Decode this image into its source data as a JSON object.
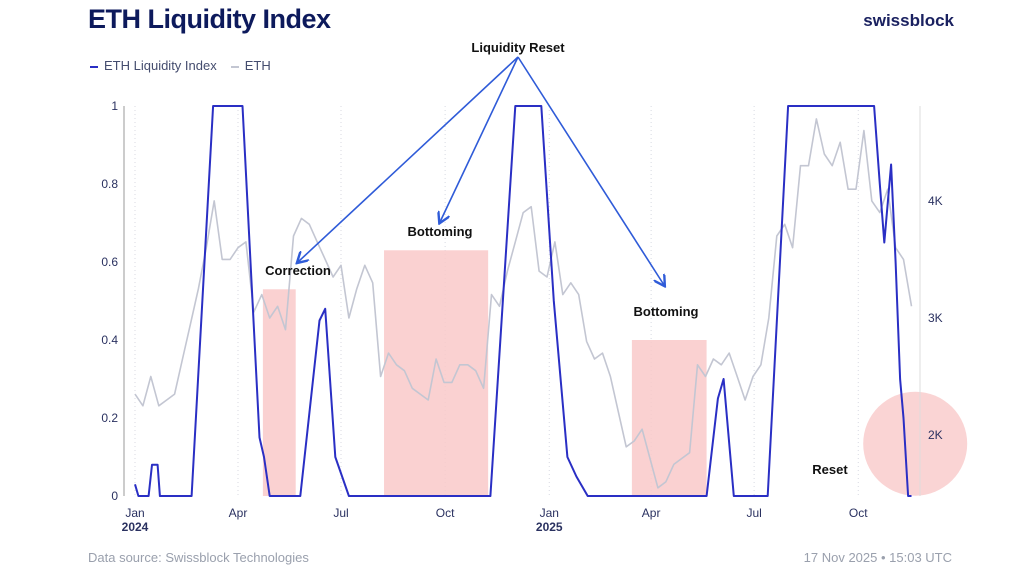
{
  "header": {
    "title": "ETH Liquidity Index",
    "brand": "swissblock"
  },
  "footer": {
    "source": "Data source: Swissblock Technologies",
    "timestamp": "17 Nov 2025 • 15:03 UTC"
  },
  "chart_data": {
    "type": "line",
    "title": "ETH Liquidity Index",
    "legend": {
      "placement": "top-left",
      "entries": [
        "ETH Liquidity Index",
        "ETH"
      ]
    },
    "x_range": [
      "2024-01-01",
      "2025-11-17"
    ],
    "x_ticks": [
      {
        "date": "2024-01-01",
        "label": "Jan",
        "year": "2024"
      },
      {
        "date": "2024-04-01",
        "label": "Apr"
      },
      {
        "date": "2024-07-01",
        "label": "Jul"
      },
      {
        "date": "2024-10-01",
        "label": "Oct"
      },
      {
        "date": "2025-01-01",
        "label": "Jan",
        "year": "2025"
      },
      {
        "date": "2025-04-01",
        "label": "Apr"
      },
      {
        "date": "2025-07-01",
        "label": "Jul"
      },
      {
        "date": "2025-10-01",
        "label": "Oct"
      }
    ],
    "y_left": {
      "range": [
        0,
        1
      ],
      "ticks": [
        "0",
        "0.2",
        "0.4",
        "0.6",
        "0.8",
        "1"
      ]
    },
    "y_right": {
      "range": [
        1480,
        4810
      ],
      "ticks": [
        {
          "v": 2000,
          "label": "2K"
        },
        {
          "v": 3000,
          "label": "3K"
        },
        {
          "v": 4000,
          "label": "4K"
        }
      ]
    },
    "grid": "vertical dotted",
    "colors": {
      "index": "#2a2fc4",
      "eth": "#c3c6d2",
      "shade": "#f9c9c9",
      "arrow": "#2f5bd8"
    },
    "series": [
      {
        "name": "ETH Liquidity Index",
        "axis": "left",
        "points": [
          [
            "2024-01-01",
            0.03
          ],
          [
            "2024-01-04",
            0
          ],
          [
            "2024-01-13",
            0
          ],
          [
            "2024-01-16",
            0.08
          ],
          [
            "2024-01-21",
            0.08
          ],
          [
            "2024-01-23",
            0
          ],
          [
            "2024-02-20",
            0
          ],
          [
            "2024-03-10",
            1
          ],
          [
            "2024-04-05",
            1
          ],
          [
            "2024-04-12",
            0.6
          ],
          [
            "2024-04-20",
            0.15
          ],
          [
            "2024-04-24",
            0.1
          ],
          [
            "2024-04-29",
            0
          ],
          [
            "2024-05-26",
            0
          ],
          [
            "2024-06-12",
            0.45
          ],
          [
            "2024-06-17",
            0.48
          ],
          [
            "2024-06-26",
            0.1
          ],
          [
            "2024-07-08",
            0
          ],
          [
            "2024-11-10",
            0
          ],
          [
            "2024-12-02",
            1
          ],
          [
            "2024-12-25",
            1
          ],
          [
            "2025-01-05",
            0.5
          ],
          [
            "2025-01-17",
            0.1
          ],
          [
            "2025-01-25",
            0.05
          ],
          [
            "2025-02-04",
            0
          ],
          [
            "2025-05-20",
            0
          ],
          [
            "2025-05-30",
            0.25
          ],
          [
            "2025-06-04",
            0.3
          ],
          [
            "2025-06-13",
            0
          ],
          [
            "2025-07-13",
            0
          ],
          [
            "2025-07-31",
            1
          ],
          [
            "2025-10-15",
            1
          ],
          [
            "2025-10-20",
            0.8
          ],
          [
            "2025-10-24",
            0.65
          ],
          [
            "2025-10-30",
            0.85
          ],
          [
            "2025-11-03",
            0.6
          ],
          [
            "2025-11-07",
            0.3
          ],
          [
            "2025-11-10",
            0.2
          ],
          [
            "2025-11-14",
            0
          ],
          [
            "2025-11-17",
            0
          ]
        ]
      },
      {
        "name": "ETH",
        "axis": "right",
        "points": [
          [
            "2024-01-01",
            2350
          ],
          [
            "2024-01-08",
            2250
          ],
          [
            "2024-01-15",
            2500
          ],
          [
            "2024-01-22",
            2250
          ],
          [
            "2024-01-29",
            2300
          ],
          [
            "2024-02-05",
            2350
          ],
          [
            "2024-02-12",
            2650
          ],
          [
            "2024-02-19",
            2950
          ],
          [
            "2024-02-26",
            3250
          ],
          [
            "2024-03-04",
            3600
          ],
          [
            "2024-03-11",
            4000
          ],
          [
            "2024-03-18",
            3500
          ],
          [
            "2024-03-25",
            3500
          ],
          [
            "2024-04-01",
            3600
          ],
          [
            "2024-04-08",
            3650
          ],
          [
            "2024-04-15",
            3050
          ],
          [
            "2024-04-22",
            3200
          ],
          [
            "2024-04-29",
            3000
          ],
          [
            "2024-05-06",
            3100
          ],
          [
            "2024-05-13",
            2900
          ],
          [
            "2024-05-20",
            3700
          ],
          [
            "2024-05-27",
            3850
          ],
          [
            "2024-06-03",
            3800
          ],
          [
            "2024-06-10",
            3650
          ],
          [
            "2024-06-17",
            3500
          ],
          [
            "2024-06-24",
            3350
          ],
          [
            "2024-07-01",
            3450
          ],
          [
            "2024-07-08",
            3000
          ],
          [
            "2024-07-15",
            3250
          ],
          [
            "2024-07-22",
            3450
          ],
          [
            "2024-07-29",
            3300
          ],
          [
            "2024-08-05",
            2500
          ],
          [
            "2024-08-12",
            2700
          ],
          [
            "2024-08-19",
            2600
          ],
          [
            "2024-08-26",
            2550
          ],
          [
            "2024-09-02",
            2400
          ],
          [
            "2024-09-09",
            2350
          ],
          [
            "2024-09-16",
            2300
          ],
          [
            "2024-09-23",
            2650
          ],
          [
            "2024-09-30",
            2450
          ],
          [
            "2024-10-07",
            2450
          ],
          [
            "2024-10-14",
            2600
          ],
          [
            "2024-10-21",
            2600
          ],
          [
            "2024-10-28",
            2550
          ],
          [
            "2024-11-04",
            2400
          ],
          [
            "2024-11-11",
            3200
          ],
          [
            "2024-11-18",
            3100
          ],
          [
            "2024-11-25",
            3400
          ],
          [
            "2024-12-02",
            3650
          ],
          [
            "2024-12-09",
            3900
          ],
          [
            "2024-12-16",
            3950
          ],
          [
            "2024-12-23",
            3400
          ],
          [
            "2024-12-30",
            3350
          ],
          [
            "2025-01-06",
            3650
          ],
          [
            "2025-01-13",
            3200
          ],
          [
            "2025-01-20",
            3300
          ],
          [
            "2025-01-27",
            3200
          ],
          [
            "2025-02-03",
            2800
          ],
          [
            "2025-02-10",
            2650
          ],
          [
            "2025-02-17",
            2700
          ],
          [
            "2025-02-24",
            2500
          ],
          [
            "2025-03-03",
            2200
          ],
          [
            "2025-03-10",
            1900
          ],
          [
            "2025-03-17",
            1950
          ],
          [
            "2025-03-24",
            2050
          ],
          [
            "2025-03-31",
            1800
          ],
          [
            "2025-04-07",
            1550
          ],
          [
            "2025-04-14",
            1600
          ],
          [
            "2025-04-21",
            1750
          ],
          [
            "2025-04-28",
            1800
          ],
          [
            "2025-05-05",
            1850
          ],
          [
            "2025-05-12",
            2600
          ],
          [
            "2025-05-19",
            2500
          ],
          [
            "2025-05-26",
            2650
          ],
          [
            "2025-06-02",
            2600
          ],
          [
            "2025-06-09",
            2700
          ],
          [
            "2025-06-16",
            2500
          ],
          [
            "2025-06-23",
            2300
          ],
          [
            "2025-06-30",
            2500
          ],
          [
            "2025-07-07",
            2600
          ],
          [
            "2025-07-14",
            3000
          ],
          [
            "2025-07-21",
            3700
          ],
          [
            "2025-07-28",
            3800
          ],
          [
            "2025-08-04",
            3600
          ],
          [
            "2025-08-11",
            4300
          ],
          [
            "2025-08-18",
            4300
          ],
          [
            "2025-08-25",
            4700
          ],
          [
            "2025-09-01",
            4400
          ],
          [
            "2025-09-08",
            4300
          ],
          [
            "2025-09-15",
            4500
          ],
          [
            "2025-09-22",
            4100
          ],
          [
            "2025-09-29",
            4100
          ],
          [
            "2025-10-06",
            4600
          ],
          [
            "2025-10-13",
            4000
          ],
          [
            "2025-10-20",
            3900
          ],
          [
            "2025-10-27",
            4100
          ],
          [
            "2025-11-03",
            3600
          ],
          [
            "2025-11-10",
            3500
          ],
          [
            "2025-11-17",
            3100
          ]
        ]
      }
    ],
    "shaded_regions": [
      {
        "label": "Correction",
        "start": "2024-04-23",
        "end": "2024-05-22",
        "top": 0.53
      },
      {
        "label": "Bottoming",
        "start": "2024-08-08",
        "end": "2024-11-08",
        "top": 0.63
      },
      {
        "label": "Bottoming",
        "start": "2025-03-15",
        "end": "2025-05-20",
        "top": 0.4
      }
    ],
    "annotations": {
      "main": "Liquidity Reset",
      "reset": "Reset",
      "reset_date": "2025-11-15",
      "reset_value": 0.07
    }
  }
}
